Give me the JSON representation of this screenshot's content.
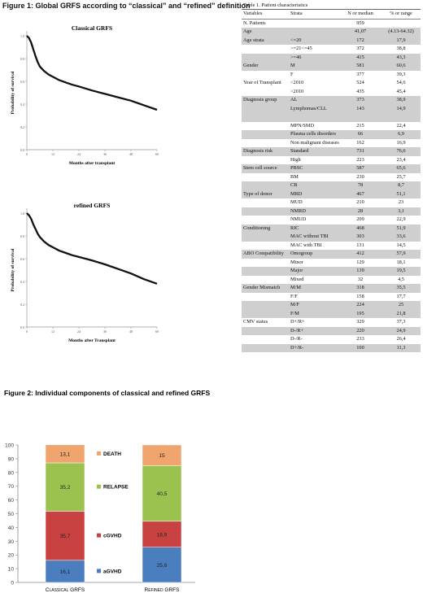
{
  "figure1": {
    "title": "Figure 1: Global GRFS according to “classical” and “refined” definition"
  },
  "chart_data": [
    {
      "type": "line",
      "title": "Classical GRFS",
      "xlabel": "Months after transplant",
      "ylabel": "Probability of survival",
      "xlim": [
        0,
        60
      ],
      "ylim": [
        0,
        1
      ],
      "xticks": [
        "0",
        "12",
        "24",
        "36",
        "48",
        "60"
      ],
      "yticks": [
        "0.0",
        "0.2",
        "0.4",
        "0.6",
        "0.8",
        "1.0"
      ],
      "series": [
        {
          "x": [
            0,
            1,
            2,
            3,
            4,
            5,
            6,
            8,
            10,
            12,
            15,
            18,
            21,
            24,
            30,
            36,
            42,
            48,
            54,
            60
          ],
          "y": [
            1.0,
            0.98,
            0.94,
            0.88,
            0.82,
            0.77,
            0.73,
            0.69,
            0.66,
            0.64,
            0.61,
            0.59,
            0.57,
            0.555,
            0.52,
            0.49,
            0.46,
            0.43,
            0.39,
            0.35
          ]
        }
      ]
    },
    {
      "type": "line",
      "title": "refined GRFS",
      "xlabel": "Months after Transplant",
      "ylabel": "Probability of survival",
      "xlim": [
        0,
        60
      ],
      "ylim": [
        0,
        1
      ],
      "xticks": [
        "0",
        "12",
        "24",
        "36",
        "48",
        "60"
      ],
      "yticks": [
        "0.0",
        "0.2",
        "0.4",
        "0.6",
        "0.8",
        "1.0"
      ],
      "series": [
        {
          "x": [
            0,
            1,
            2,
            3,
            4,
            5,
            6,
            8,
            10,
            12,
            15,
            18,
            21,
            24,
            30,
            36,
            42,
            48,
            54,
            60
          ],
          "y": [
            1.0,
            0.98,
            0.95,
            0.9,
            0.86,
            0.82,
            0.79,
            0.75,
            0.72,
            0.7,
            0.67,
            0.65,
            0.63,
            0.615,
            0.585,
            0.55,
            0.51,
            0.47,
            0.42,
            0.38
          ]
        }
      ]
    },
    {
      "type": "bar",
      "title": "Figure 2: Individual components of classical and refined GRFS",
      "categories": [
        "Classical GRFS",
        "Refined GRFS"
      ],
      "ylim": [
        0,
        100
      ],
      "yticks": [
        "0",
        "10",
        "20",
        "30",
        "40",
        "50",
        "60",
        "70",
        "80",
        "90",
        "100"
      ],
      "series": [
        {
          "name": "aGVHD",
          "values": [
            16.1,
            25.6
          ],
          "labels": [
            "16,1",
            "25,6"
          ],
          "color": "#4a7ebf"
        },
        {
          "name": "cGVHD",
          "values": [
            35.7,
            18.9
          ],
          "labels": [
            "35,7",
            "18,9"
          ],
          "color": "#c84242"
        },
        {
          "name": "RELAPSE",
          "values": [
            35.2,
            40.5
          ],
          "labels": [
            "35,2",
            "40,5"
          ],
          "color": "#9bc24f"
        },
        {
          "name": "DEATH",
          "values": [
            13.1,
            15
          ],
          "labels": [
            "13,1",
            "15"
          ],
          "color": "#f0a46e"
        }
      ]
    }
  ],
  "table": {
    "caption": "Table 1. Patient characteristics",
    "headers": [
      "Variables",
      "Strata",
      "N or median",
      "% or range"
    ],
    "rows": [
      [
        "N. Patients",
        "",
        "959",
        ""
      ],
      [
        "Age",
        "",
        "41,07",
        "(4.13-64.32)"
      ],
      [
        "Age strata",
        "<=20",
        "172",
        "17,9"
      ],
      [
        "",
        ">=21<=45",
        "372",
        "38,8"
      ],
      [
        "",
        ">=46",
        "415",
        "43,3"
      ],
      [
        "Gender",
        "M",
        "581",
        "60,6"
      ],
      [
        "",
        "F",
        "377",
        "39,3"
      ],
      [
        "Year of Transplant",
        "<2010",
        "524",
        "54,6"
      ],
      [
        "",
        ">2010",
        "435",
        "45,4"
      ],
      [
        "Diagnosis group",
        "AL",
        "373",
        "38,9"
      ],
      [
        "",
        "Lymphomas/CLL",
        "143",
        "14,9"
      ],
      [
        "",
        "",
        "",
        ""
      ],
      [
        "",
        "MPN/SMD",
        "215",
        "22,4"
      ],
      [
        "",
        "Plasma cells disorders",
        "66",
        "6,9"
      ],
      [
        "",
        "Non malignant diseases",
        "162",
        "16,9"
      ],
      [
        "Diagnosis risk",
        "Standard",
        "731",
        "76,6"
      ],
      [
        "",
        "High",
        "223",
        "23,4"
      ],
      [
        "Stem cell source",
        "PBSC",
        "587",
        "65,6"
      ],
      [
        "",
        "BM",
        "230",
        "25,7"
      ],
      [
        "",
        "CB",
        "78",
        "8,7"
      ],
      [
        "Type of donor",
        "MRD",
        "467",
        "51,1"
      ],
      [
        "",
        "MUD",
        "210",
        "23"
      ],
      [
        "",
        "NMRD",
        "28",
        "3,1"
      ],
      [
        "",
        "NMUD",
        "209",
        "22,9"
      ],
      [
        "Conditioning",
        "RIC",
        "468",
        "51,9"
      ],
      [
        "",
        "MAC without TBI",
        "303",
        "33,6"
      ],
      [
        "",
        "MAC with TBI",
        "131",
        "14,5"
      ],
      [
        "ABO Compatibility",
        "Omogroup",
        "412",
        "57,9"
      ],
      [
        "",
        "Minor",
        "129",
        "18,1"
      ],
      [
        "",
        "Major",
        "139",
        "19,5"
      ],
      [
        "",
        "Mixed",
        "32",
        "4,5"
      ],
      [
        "Gender Mismatch",
        "M/M",
        "318",
        "35,5"
      ],
      [
        "",
        "F/F",
        "158",
        "17,7"
      ],
      [
        "",
        "M/F",
        "224",
        "25"
      ],
      [
        "",
        "F/M",
        "195",
        "21,8"
      ],
      [
        "CMV status",
        "D+/R+",
        "329",
        "37,3"
      ],
      [
        "",
        "D-/R+",
        "220",
        "24,9"
      ],
      [
        "",
        "D-/R-",
        "233",
        "26,4"
      ],
      [
        "",
        "D+/R-",
        "100",
        "11,3"
      ]
    ],
    "shaded": [
      1,
      2,
      4,
      5,
      9,
      10,
      11,
      13,
      15,
      17,
      19,
      20,
      22,
      24,
      25,
      27,
      29,
      31,
      33,
      34,
      36,
      38
    ]
  }
}
